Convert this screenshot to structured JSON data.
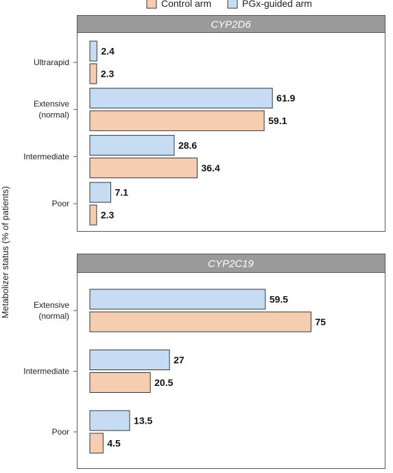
{
  "legend": {
    "items": [
      {
        "label": "Control arm",
        "color": "#f5cdb1"
      },
      {
        "label": "PGx-guided arm",
        "color": "#c5dcf2"
      }
    ]
  },
  "colors": {
    "control_fill": "#f5cdb1",
    "pgx_fill": "#c5dcf2",
    "bar_stroke": "#333333",
    "panel_header": "#9a9a9a",
    "panel_border": "#555555"
  },
  "chart_data": [
    {
      "type": "bar",
      "orientation": "horizontal",
      "title": "CYP2D6",
      "ylabel": "Metabolizer status (% of patients)",
      "categories": [
        [
          "Ultrarapid"
        ],
        [
          "Extensive",
          "(normal)"
        ],
        [
          "Intermediate"
        ],
        [
          "Poor"
        ]
      ],
      "series": [
        {
          "name": "PGx-guided arm",
          "values": [
            2.4,
            61.9,
            28.6,
            7.1
          ],
          "labels": [
            "2.4",
            "61.9",
            "28.6",
            "7.1"
          ]
        },
        {
          "name": "Control arm",
          "values": [
            2.3,
            59.1,
            36.4,
            2.3
          ],
          "labels": [
            "2.3",
            "59.1",
            "36.4",
            "2.3"
          ]
        }
      ],
      "xlim": [
        0,
        100
      ],
      "grid": false,
      "legend_position": "top"
    },
    {
      "type": "bar",
      "orientation": "horizontal",
      "title": "CYP2C19",
      "ylabel": "Metabolizer status (% of patients)",
      "categories": [
        [
          "Extensive",
          "(normal)"
        ],
        [
          "Intermediate"
        ],
        [
          "Poor"
        ]
      ],
      "series": [
        {
          "name": "PGx-guided arm",
          "values": [
            59.5,
            27,
            13.5
          ],
          "labels": [
            "59.5",
            "27",
            "13.5"
          ]
        },
        {
          "name": "Control arm",
          "values": [
            75,
            20.5,
            4.5
          ],
          "labels": [
            "75",
            "20.5",
            "4.5"
          ]
        }
      ],
      "xlim": [
        0,
        100
      ],
      "grid": false,
      "legend_position": "top"
    }
  ]
}
